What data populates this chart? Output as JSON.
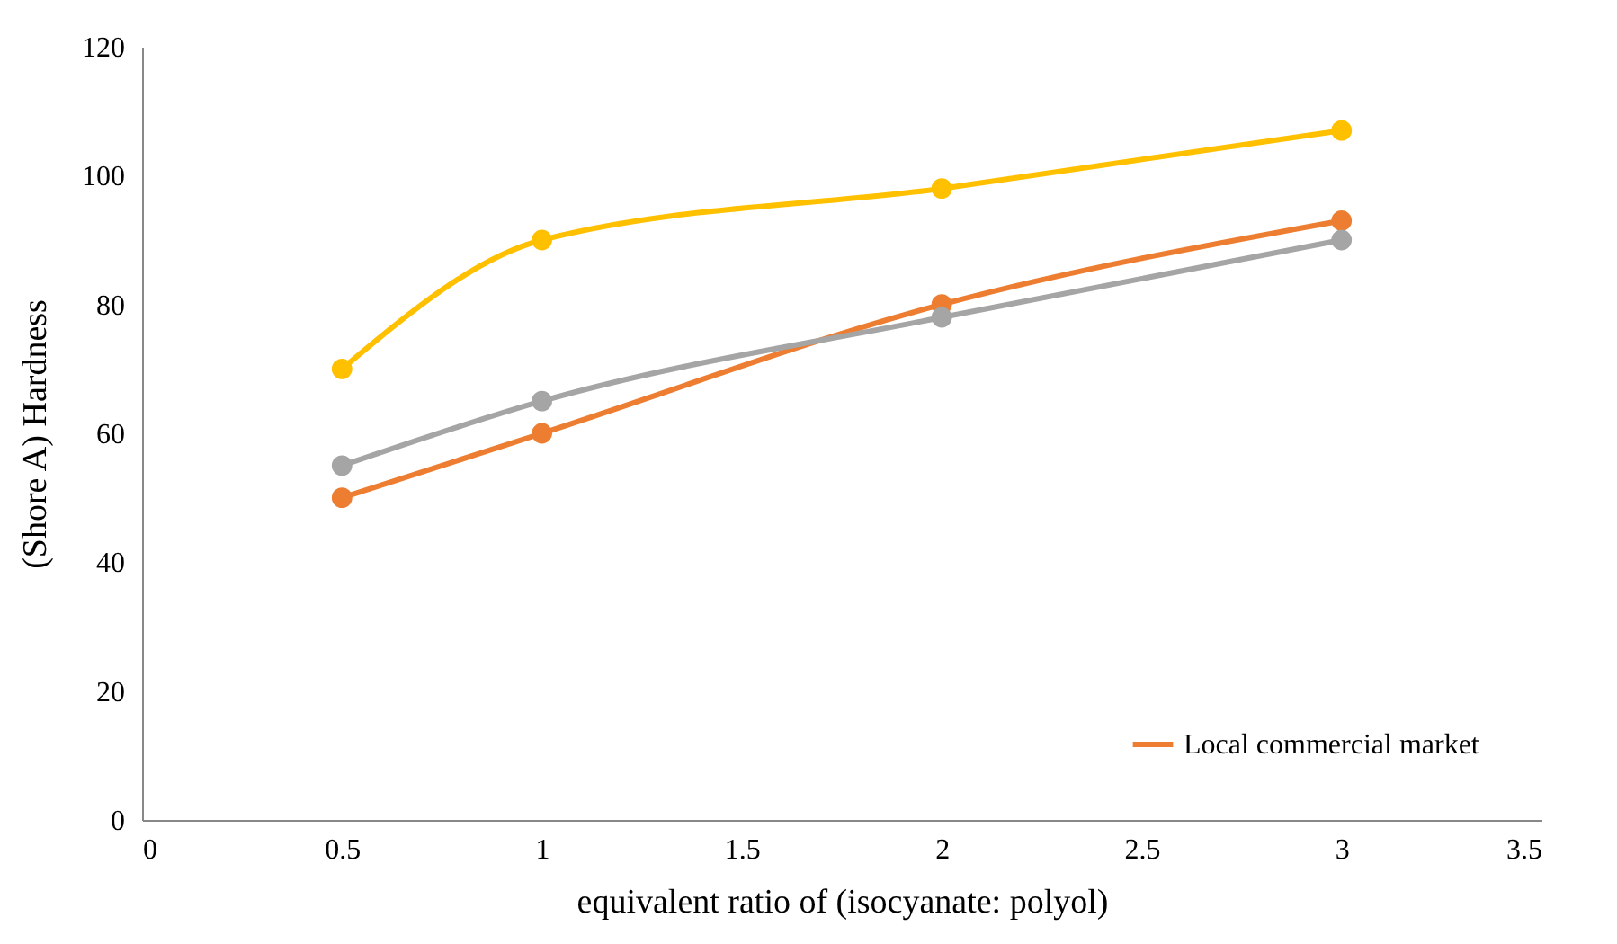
{
  "chart_data": {
    "type": "line",
    "xlabel": "equivalent ratio of (isocyanate: polyol)",
    "ylabel": "(Shore A) Hardness",
    "x": [
      0.5,
      1,
      2,
      3
    ],
    "series": [
      {
        "name": "Local commercial market",
        "color": "#ed7d31",
        "values": [
          50,
          60,
          80,
          93
        ]
      },
      {
        "color": "#a5a5a5",
        "values": [
          55,
          65,
          78,
          90
        ]
      },
      {
        "color": "#ffc000",
        "values": [
          70,
          90,
          98,
          107
        ]
      }
    ],
    "xlim": [
      0,
      3.5
    ],
    "xticks": [
      0,
      0.5,
      1,
      1.5,
      2,
      2.5,
      3,
      3.5
    ],
    "ylim": [
      0,
      120
    ],
    "yticks": [
      0,
      20,
      40,
      60,
      80,
      100,
      120
    ],
    "grid": false,
    "legend": "bottom right",
    "marker": "circle",
    "line_style": "solid"
  }
}
